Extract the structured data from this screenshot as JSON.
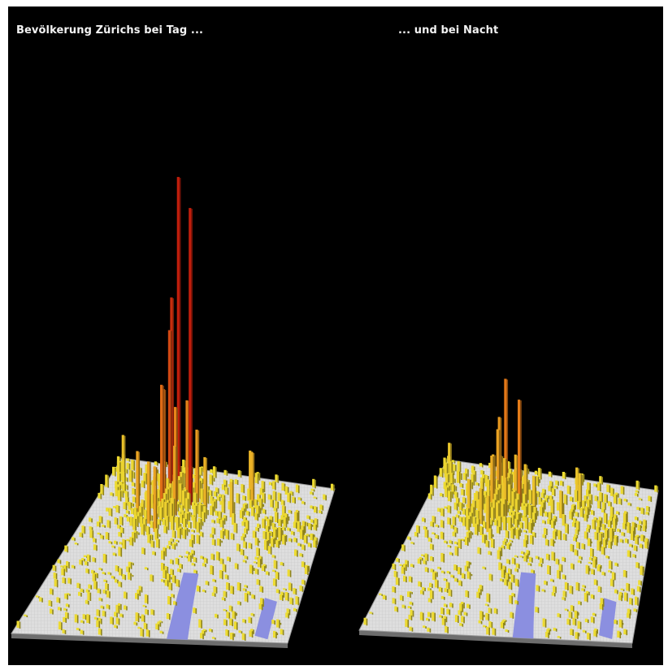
{
  "titles": {
    "day": "Bevölkerung Zürichs bei Tag ...",
    "night": "... und bei Nacht"
  },
  "colors": {
    "background": "#000000",
    "ground": "#dedede",
    "water": "#8b8fe0",
    "low": "#ede233",
    "mid": "#e8861a",
    "high": "#c21e0c",
    "text": "#f2f2f2"
  },
  "chart_data": [
    {
      "type": "3d-bar-map",
      "title": "Bevölkerung Zürichs bei Tag ...",
      "intensity_scale": 1.0,
      "peak_relative_height": 1.0
    },
    {
      "type": "3d-bar-map",
      "title": "... und bei Nacht",
      "intensity_scale": 0.3,
      "peak_relative_height": 0.3
    }
  ]
}
